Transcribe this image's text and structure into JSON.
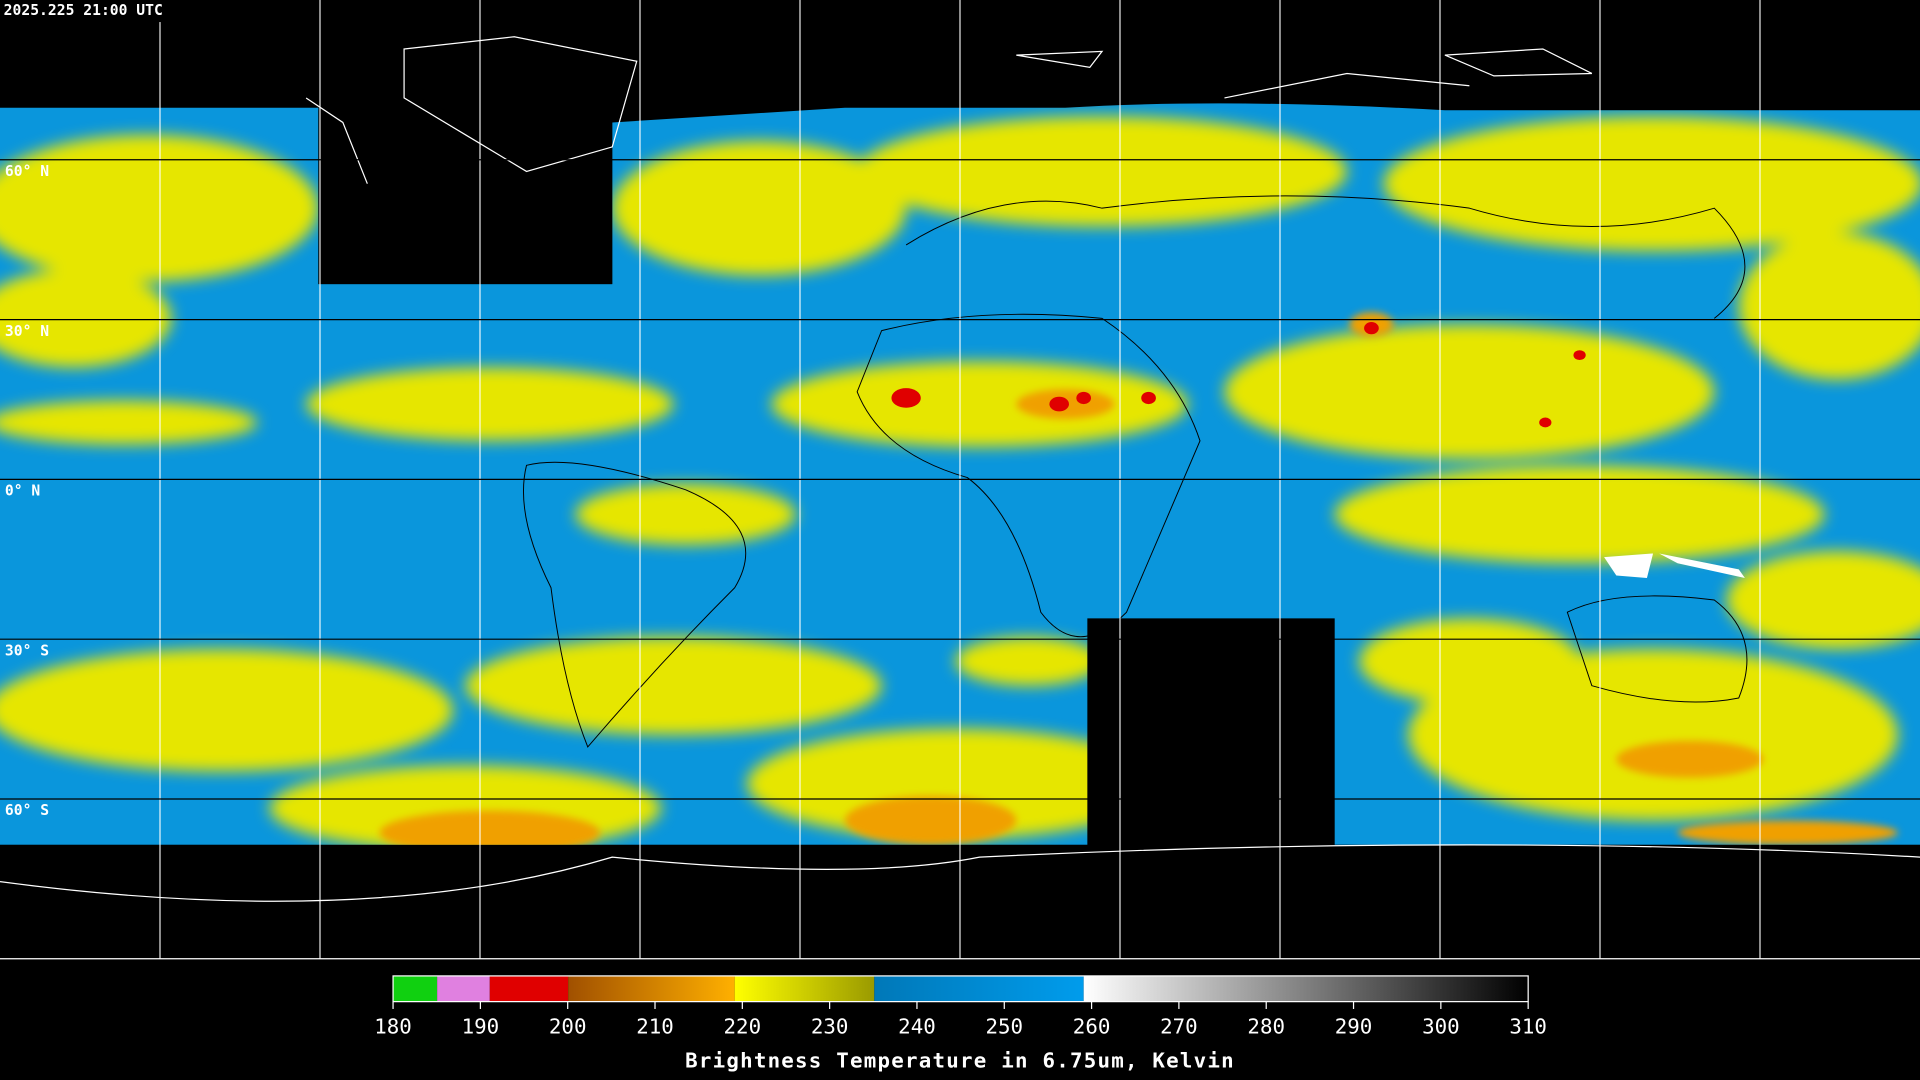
{
  "map": {
    "timestamp": "2025.225 21:00 UTC",
    "latitudes": [
      {
        "value": 60,
        "label": "60° N"
      },
      {
        "value": 30,
        "label": "30° N"
      },
      {
        "value": 0,
        "label": "0° N"
      },
      {
        "value": -30,
        "label": "30° S"
      },
      {
        "value": -60,
        "label": "60° S"
      }
    ],
    "colorbar": {
      "range": [
        180,
        310
      ],
      "ticks": [
        180,
        190,
        200,
        210,
        220,
        230,
        240,
        250,
        260,
        270,
        280,
        290,
        300,
        310
      ],
      "title": "Brightness Temperature in 6.75um, Kelvin"
    }
  }
}
